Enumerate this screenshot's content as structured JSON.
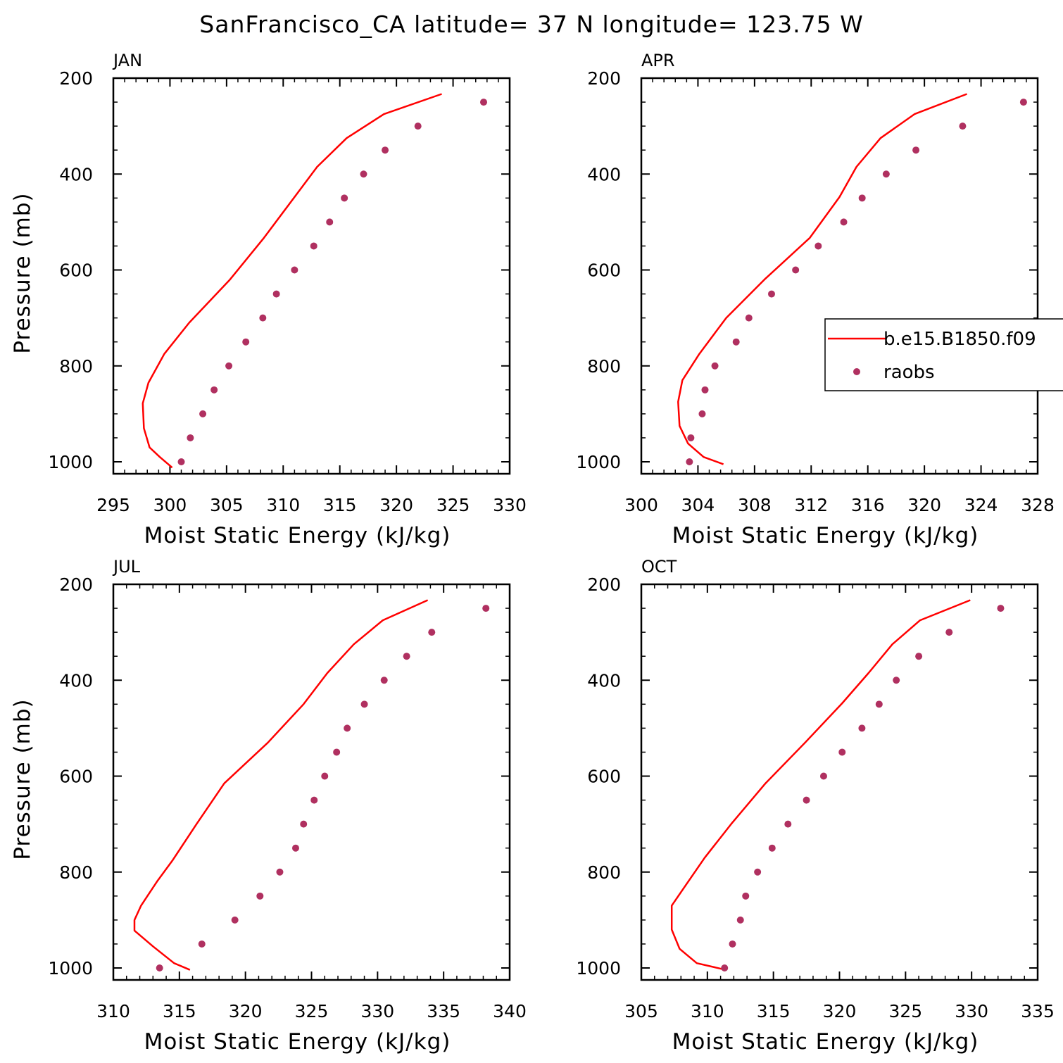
{
  "title": "SanFrancisco_CA  latitude= 37 N longitude= 123.75 W",
  "legend": {
    "entries": [
      {
        "label": "b.e15.B1850.f09",
        "style": "line",
        "color": "#ff0000"
      },
      {
        "label": "raobs",
        "style": "marker",
        "color": "#b03060"
      }
    ]
  },
  "chart_data": [
    {
      "type": "line",
      "panel": "JAN",
      "xlabel": "Moist Static Energy (kJ/kg)",
      "ylabel": "Pressure (mb)",
      "xlim": [
        295,
        330
      ],
      "ylim": [
        1000,
        200
      ],
      "xticks": [
        "295",
        "300",
        "305",
        "310",
        "315",
        "320",
        "325",
        "330"
      ],
      "yticks": [
        "200",
        "400",
        "600",
        "800",
        "1000"
      ],
      "series": [
        {
          "name": "b.e15.B1850.f09",
          "style": "line",
          "color": "#ff0000",
          "x": [
            324.0,
            318.9,
            315.6,
            313.0,
            311.0,
            308.3,
            305.3,
            301.7,
            299.5,
            298.1,
            297.6,
            297.7,
            298.2,
            299.1,
            300.2
          ],
          "y": [
            233,
            275,
            325,
            385,
            448,
            533,
            620,
            710,
            775,
            835,
            878,
            930,
            970,
            990,
            1012
          ]
        },
        {
          "name": "raobs",
          "style": "marker",
          "color": "#b03060",
          "x": [
            327.7,
            321.9,
            319.0,
            317.1,
            315.4,
            314.1,
            312.7,
            311.0,
            309.4,
            308.2,
            306.7,
            305.2,
            303.9,
            302.9,
            301.8,
            301.0
          ],
          "y": [
            250,
            300,
            350,
            400,
            450,
            500,
            550,
            600,
            650,
            700,
            750,
            800,
            850,
            900,
            950,
            1000
          ]
        }
      ]
    },
    {
      "type": "line",
      "panel": "APR",
      "xlabel": "Moist Static Energy (kJ/kg)",
      "ylabel": "",
      "xlim": [
        300,
        328
      ],
      "ylim": [
        1000,
        200
      ],
      "xticks": [
        "300",
        "304",
        "308",
        "312",
        "316",
        "320",
        "324",
        "328"
      ],
      "yticks": [
        "200",
        "400",
        "600",
        "800",
        "1000"
      ],
      "series": [
        {
          "name": "b.e15.B1850.f09",
          "style": "line",
          "color": "#ff0000",
          "x": [
            323.0,
            319.3,
            316.9,
            315.2,
            314.0,
            311.9,
            308.7,
            306.0,
            304.1,
            302.9,
            302.6,
            302.7,
            303.3,
            304.4,
            305.8
          ],
          "y": [
            233,
            275,
            325,
            385,
            448,
            533,
            620,
            700,
            775,
            830,
            875,
            925,
            962,
            990,
            1005
          ]
        },
        {
          "name": "raobs",
          "style": "marker",
          "color": "#b03060",
          "x": [
            327.0,
            322.7,
            319.4,
            317.3,
            315.6,
            314.3,
            312.5,
            310.9,
            309.2,
            307.6,
            306.7,
            305.2,
            304.5,
            304.3,
            303.5,
            303.4
          ],
          "y": [
            250,
            300,
            350,
            400,
            450,
            500,
            550,
            600,
            650,
            700,
            750,
            800,
            850,
            900,
            950,
            1000
          ]
        }
      ]
    },
    {
      "type": "line",
      "panel": "JUL",
      "xlabel": "Moist Static Energy (kJ/kg)",
      "ylabel": "Pressure (mb)",
      "xlim": [
        310,
        340
      ],
      "ylim": [
        1000,
        200
      ],
      "xticks": [
        "310",
        "315",
        "320",
        "325",
        "330",
        "335",
        "340"
      ],
      "yticks": [
        "200",
        "400",
        "600",
        "800",
        "1000"
      ],
      "series": [
        {
          "name": "b.e15.B1850.f09",
          "style": "line",
          "color": "#ff0000",
          "x": [
            333.8,
            330.4,
            328.2,
            326.2,
            324.4,
            321.7,
            318.4,
            316.3,
            314.5,
            313.3,
            312.1,
            311.6,
            311.6,
            313.0,
            314.6,
            315.8
          ],
          "y": [
            233,
            275,
            325,
            385,
            450,
            530,
            615,
            700,
            775,
            820,
            870,
            900,
            922,
            955,
            990,
            1004
          ]
        },
        {
          "name": "raobs",
          "style": "marker",
          "color": "#b03060",
          "x": [
            338.2,
            334.1,
            332.2,
            330.5,
            329.0,
            327.7,
            326.9,
            326.0,
            325.2,
            324.4,
            323.8,
            322.6,
            321.1,
            319.2,
            316.7,
            313.5
          ],
          "y": [
            250,
            300,
            350,
            400,
            450,
            500,
            550,
            600,
            650,
            700,
            750,
            800,
            850,
            900,
            950,
            1000
          ]
        }
      ]
    },
    {
      "type": "line",
      "panel": "OCT",
      "xlabel": "Moist Static Energy (kJ/kg)",
      "ylabel": "",
      "xlim": [
        305,
        335
      ],
      "ylim": [
        1000,
        200
      ],
      "xticks": [
        "305",
        "310",
        "315",
        "320",
        "325",
        "330",
        "335"
      ],
      "yticks": [
        "200",
        "400",
        "600",
        "800",
        "1000"
      ],
      "series": [
        {
          "name": "b.e15.B1850.f09",
          "style": "line",
          "color": "#ff0000",
          "x": [
            329.9,
            326.1,
            324.0,
            322.2,
            320.2,
            317.4,
            314.4,
            311.8,
            309.8,
            308.3,
            307.3,
            307.3,
            307.9,
            309.2,
            311.4
          ],
          "y": [
            233,
            275,
            325,
            385,
            448,
            530,
            615,
            700,
            770,
            830,
            870,
            920,
            960,
            990,
            1004
          ]
        },
        {
          "name": "raobs",
          "style": "marker",
          "color": "#b03060",
          "x": [
            332.2,
            328.3,
            326.0,
            324.3,
            323.0,
            321.7,
            320.2,
            318.8,
            317.5,
            316.1,
            314.9,
            313.8,
            312.9,
            312.5,
            311.9,
            311.3
          ],
          "y": [
            250,
            300,
            350,
            400,
            450,
            500,
            550,
            600,
            650,
            700,
            750,
            800,
            850,
            900,
            950,
            1000
          ]
        }
      ]
    }
  ]
}
